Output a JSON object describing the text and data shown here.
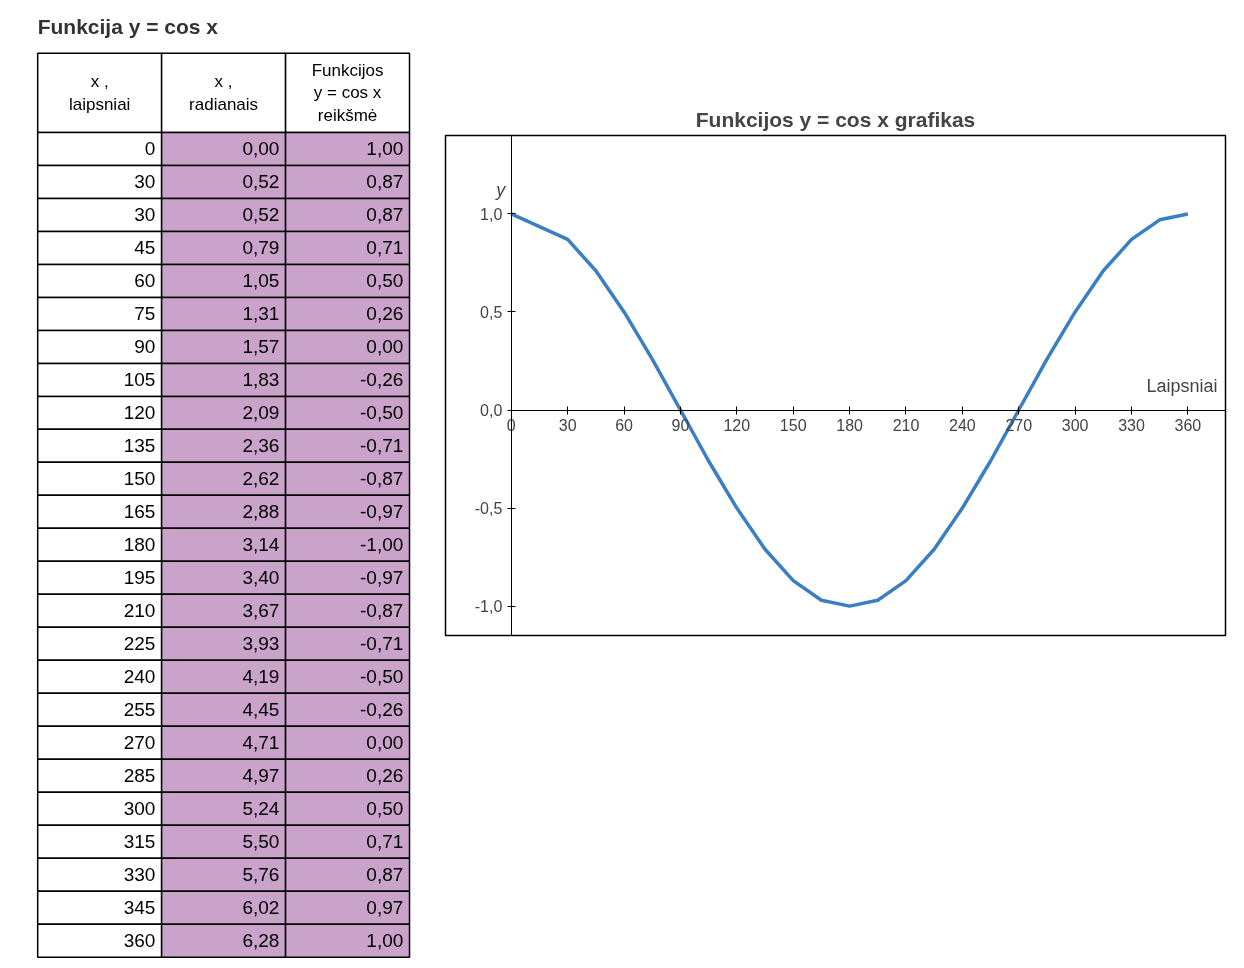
{
  "chart_data": [
    {
      "type": "other",
      "title": "Funkcija y = cos x",
      "categories": [
        "x ,\nlaipsniai",
        "x ,\nradianais",
        "Funkcijos\ny = cos x\nreikšmė"
      ],
      "cell_labels": [
        [
          "0",
          "0,00",
          "1,00"
        ],
        [
          "30",
          "0,52",
          "0,87"
        ],
        [
          "30",
          "0,52",
          "0,87"
        ],
        [
          "45",
          "0,79",
          "0,71"
        ],
        [
          "60",
          "1,05",
          "0,50"
        ],
        [
          "75",
          "1,31",
          "0,26"
        ],
        [
          "90",
          "1,57",
          "0,00"
        ],
        [
          "105",
          "1,83",
          "-0,26"
        ],
        [
          "120",
          "2,09",
          "-0,50"
        ],
        [
          "135",
          "2,36",
          "-0,71"
        ],
        [
          "150",
          "2,62",
          "-0,87"
        ],
        [
          "165",
          "2,88",
          "-0,97"
        ],
        [
          "180",
          "3,14",
          "-1,00"
        ],
        [
          "195",
          "3,40",
          "-0,97"
        ],
        [
          "210",
          "3,67",
          "-0,87"
        ],
        [
          "225",
          "3,93",
          "-0,71"
        ],
        [
          "240",
          "4,19",
          "-0,50"
        ],
        [
          "255",
          "4,45",
          "-0,26"
        ],
        [
          "270",
          "4,71",
          "0,00"
        ],
        [
          "285",
          "4,97",
          "0,26"
        ],
        [
          "300",
          "5,24",
          "0,50"
        ],
        [
          "315",
          "5,50",
          "0,71"
        ],
        [
          "330",
          "5,76",
          "0,87"
        ],
        [
          "345",
          "6,02",
          "0,97"
        ],
        [
          "360",
          "6,28",
          "1,00"
        ]
      ]
    },
    {
      "type": "line",
      "title": "Funkcijos y = cos x grafikas",
      "xlabel": "Laipsniai",
      "ylabel": "y",
      "x": [
        0,
        30,
        30,
        45,
        60,
        75,
        90,
        105,
        120,
        135,
        150,
        165,
        180,
        195,
        210,
        225,
        240,
        255,
        270,
        285,
        300,
        315,
        330,
        345,
        360
      ],
      "series": [
        {
          "color": "#3a7fc1",
          "values": [
            1,
            0.87,
            0.87,
            0.71,
            0.5,
            0.26,
            0,
            -0.26,
            -0.5,
            -0.71,
            -0.87,
            -0.97,
            -1,
            -0.97,
            -0.87,
            -0.71,
            -0.5,
            -0.26,
            0,
            0.26,
            0.5,
            0.71,
            0.87,
            0.97,
            1
          ]
        }
      ],
      "xlim": [
        -35,
        380
      ],
      "ylim": [
        -1.15,
        1.4
      ],
      "xticks": [
        0,
        30,
        60,
        90,
        120,
        150,
        180,
        210,
        240,
        270,
        300,
        330,
        360
      ],
      "yticks": [
        {
          "value": -1,
          "label": "-1,0"
        },
        {
          "value": -0.5,
          "label": "-0,5"
        },
        {
          "value": 0,
          "label": "0,0"
        },
        {
          "value": 0.5,
          "label": "0,5"
        },
        {
          "value": 1,
          "label": "1,0"
        }
      ],
      "grid": false
    }
  ]
}
